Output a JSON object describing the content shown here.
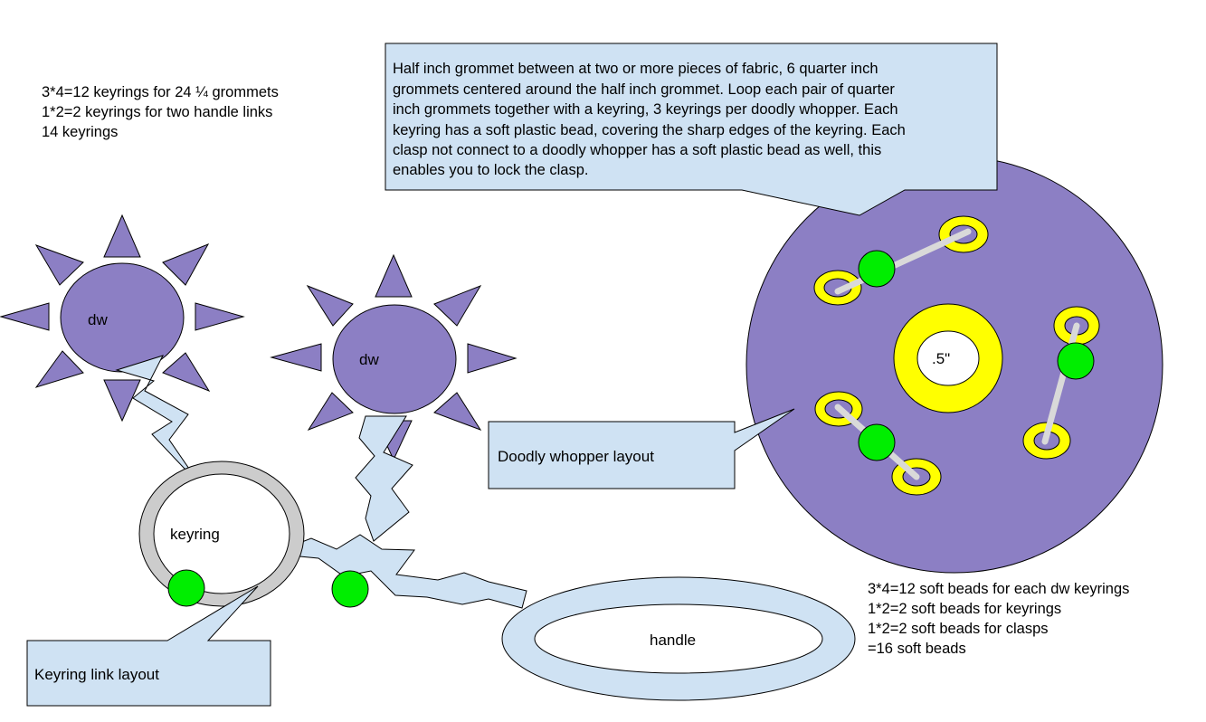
{
  "notes": {
    "keyring_count": [
      "3*4=12 keyrings for 24 ¼ grommets",
      "1*2=2 keyrings for two handle links",
      "14 keyrings"
    ],
    "bead_count": [
      "3*4=12 soft beads for each dw keyrings",
      "1*2=2 soft beads for keyrings",
      "1*2=2 soft beads for clasps",
      "=16 soft beads"
    ]
  },
  "callouts": {
    "description": [
      "Half inch grommet between at two or more pieces of fabric, 6 quarter inch",
      "grommets centered around the half inch grommet. Loop each pair of quarter",
      "inch grommets together with a keyring, 3 keyrings per doodly whopper. Each",
      "keyring has a soft plastic bead, covering the sharp edges of the keyring. Each",
      "clasp not connect to a doodly whopper has a soft plastic bead as well, this",
      "enables you to lock the clasp."
    ],
    "doodly_layout": "Doodly whopper layout",
    "keyring_layout": "Keyring link layout"
  },
  "labels": {
    "dw_left": "dw",
    "dw_middle": "dw",
    "keyring": "keyring",
    "handle": "handle",
    "center_grommet": ".5\""
  },
  "colors": {
    "purple": "#8c7fc4",
    "light_blue": "#cfe2f3",
    "yellow": "#ffff00",
    "green": "#00ee00",
    "gray": "#cccccc",
    "connector": "#d9d9d9"
  }
}
